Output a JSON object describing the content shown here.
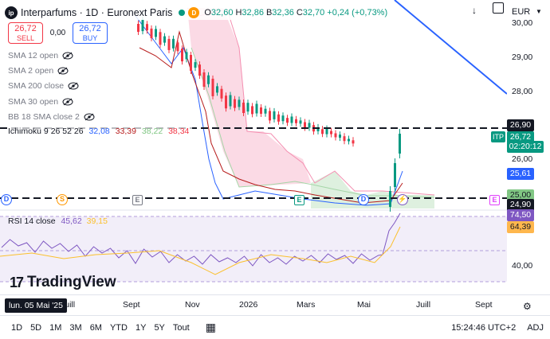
{
  "header": {
    "logo_text": "ip",
    "title": "Interparfums · 1D · Euronext Paris",
    "d_badge": "D",
    "open_label": "O",
    "open": "32,60",
    "high_label": "H",
    "high": "32,86",
    "low_label": "B",
    "low": "32,36",
    "close_label": "C",
    "close": "32,70",
    "change": "+0,24 (+0,73%)"
  },
  "trade": {
    "sell_price": "26,72",
    "sell_label": "SELL",
    "spread": "0,00",
    "buy_price": "26,72",
    "buy_label": "BUY"
  },
  "indicators": [
    {
      "label": "SMA 12 open"
    },
    {
      "label": "SMA 2 open"
    },
    {
      "label": "SMA 200 close"
    },
    {
      "label": "SMA 30 open"
    },
    {
      "label": "BB 18 SMA close 2"
    }
  ],
  "ichimoku": {
    "label": "Ichimoku 9 26 52 26",
    "v1": "32,08",
    "v2": "33,39",
    "v3": "38,22",
    "v4": "38,34",
    "c1": "#2962ff",
    "c2": "#b71c1c",
    "c3": "#81c784",
    "c4": "#f23645"
  },
  "price_axis": {
    "currency": "EUR",
    "labels": [
      "30,00",
      "29,00",
      "28,00",
      "26,00"
    ],
    "tags": [
      {
        "value": "26,90",
        "color": "#131722"
      },
      {
        "value": "26,72",
        "color": "#089981"
      },
      {
        "value": "02:20:12",
        "color": "#089981"
      },
      {
        "value": "25,61",
        "color": "#2962ff"
      },
      {
        "value": "25,00",
        "color": "#81c784"
      },
      {
        "value": "24,90",
        "color": "#131722"
      },
      {
        "value": "74,50",
        "color": "#7e57c2"
      },
      {
        "value": "64,39",
        "color": "#ffb74d"
      }
    ],
    "rsi_label": "40,00"
  },
  "itp_label": "ITP",
  "events": [
    {
      "letter": "D",
      "color": "#2962ff"
    },
    {
      "letter": "S",
      "color": "#ff9800"
    },
    {
      "letter": "E",
      "color": "#787b86"
    },
    {
      "letter": "E",
      "color": "#089981"
    },
    {
      "letter": "D",
      "color": "#2962ff"
    },
    {
      "letter": "E",
      "color": "#e040fb"
    }
  ],
  "rsi": {
    "label": "RSI 14 close",
    "value": "45,62",
    "ma_value": "39,15",
    "line_color": "#7e57c2",
    "ma_color": "#fbc02d"
  },
  "watermark": "TradingView",
  "time_axis": {
    "date_chip": "lun. 05 Mai '25",
    "labels": [
      "Juill",
      "Sept",
      "Nov",
      "2026",
      "Mars",
      "Mai",
      "Juill",
      "Sept"
    ]
  },
  "toolbar": {
    "timeframes": [
      "1D",
      "5D",
      "1M",
      "3M",
      "6M",
      "YTD",
      "1Y",
      "5Y",
      "Tout"
    ],
    "clock": "15:24:46 UTC+2",
    "adj": "ADJ"
  }
}
